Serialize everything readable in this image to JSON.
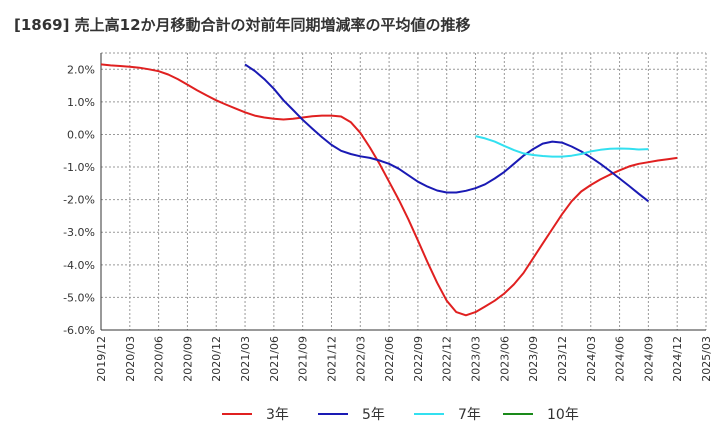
{
  "chart_data": {
    "type": "line",
    "title": "[1869]  売上高12か月移動合計の対前年同期増減率の平均値の推移",
    "xlabel": "",
    "ylabel": "",
    "ylim": [
      -6.0,
      2.5
    ],
    "y_ticks": [
      "2.0%",
      "1.0%",
      "0.0%",
      "-1.0%",
      "-2.0%",
      "-3.0%",
      "-4.0%",
      "-5.0%",
      "-6.0%"
    ],
    "y_tick_values": [
      2,
      1,
      0,
      -1,
      -2,
      -3,
      -4,
      -5,
      -6
    ],
    "x_ticks": [
      "2019/12",
      "2020/03",
      "2020/06",
      "2020/09",
      "2020/12",
      "2021/03",
      "2021/06",
      "2021/09",
      "2021/12",
      "2022/03",
      "2022/06",
      "2022/09",
      "2022/12",
      "2023/03",
      "2023/06",
      "2023/09",
      "2023/12",
      "2024/03",
      "2024/06",
      "2024/09",
      "2024/12",
      "2025/03"
    ],
    "grid": true,
    "legend_position": "bottom",
    "series": [
      {
        "name": "3年",
        "color": "#e02020",
        "x_start": "2019/12",
        "values": [
          2.15,
          2.12,
          2.1,
          2.08,
          2.05,
          2.0,
          1.94,
          1.84,
          1.7,
          1.53,
          1.36,
          1.2,
          1.05,
          0.92,
          0.8,
          0.68,
          0.58,
          0.52,
          0.48,
          0.46,
          0.48,
          0.52,
          0.56,
          0.58,
          0.58,
          0.55,
          0.38,
          0.05,
          -0.4,
          -0.9,
          -1.45,
          -2.0,
          -2.6,
          -3.25,
          -3.92,
          -4.55,
          -5.1,
          -5.45,
          -5.55,
          -5.45,
          -5.28,
          -5.1,
          -4.88,
          -4.6,
          -4.25,
          -3.8,
          -3.35,
          -2.9,
          -2.45,
          -2.05,
          -1.75,
          -1.55,
          -1.38,
          -1.23,
          -1.1,
          -0.98,
          -0.9,
          -0.85,
          -0.8,
          -0.76,
          -0.72
        ]
      },
      {
        "name": "5年",
        "color": "#1a1ab4",
        "x_start": "2021/03",
        "values": [
          2.15,
          1.95,
          1.7,
          1.4,
          1.05,
          0.75,
          0.45,
          0.18,
          -0.08,
          -0.32,
          -0.5,
          -0.6,
          -0.67,
          -0.72,
          -0.8,
          -0.9,
          -1.05,
          -1.25,
          -1.45,
          -1.6,
          -1.72,
          -1.78,
          -1.78,
          -1.73,
          -1.65,
          -1.53,
          -1.35,
          -1.15,
          -0.9,
          -0.65,
          -0.45,
          -0.28,
          -0.22,
          -0.25,
          -0.37,
          -0.52,
          -0.7,
          -0.9,
          -1.12,
          -1.35,
          -1.58,
          -1.82,
          -2.05
        ]
      },
      {
        "name": "7年",
        "color": "#33e0f0",
        "x_start": "2023/03",
        "values": [
          -0.05,
          -0.12,
          -0.22,
          -0.35,
          -0.48,
          -0.58,
          -0.63,
          -0.66,
          -0.68,
          -0.68,
          -0.65,
          -0.6,
          -0.52,
          -0.47,
          -0.44,
          -0.43,
          -0.44,
          -0.46,
          -0.45
        ]
      },
      {
        "name": "10年",
        "color": "#1a8a1a",
        "x_start": "",
        "values": []
      }
    ]
  }
}
